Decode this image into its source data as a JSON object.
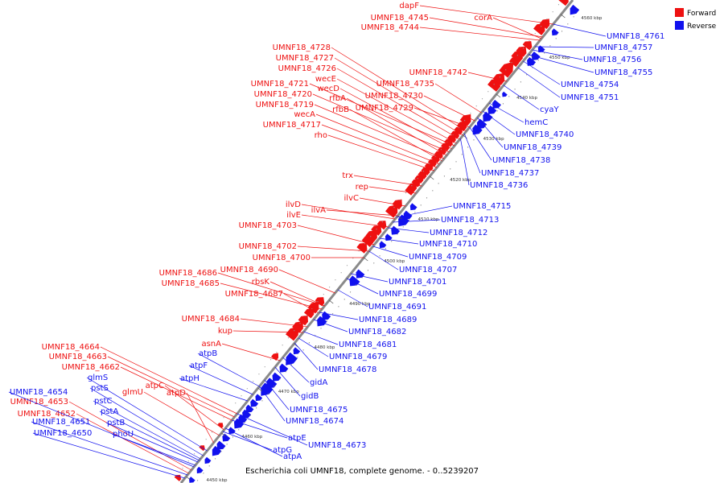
{
  "title": "Escherichia coli UMNF18, complete genome. - 0..5239207",
  "colors": {
    "forward": "#ee1111",
    "reverse": "#1111ee",
    "backbone": "#8a8a8a"
  },
  "legend": [
    {
      "label": "Forward",
      "color": "#ee1111"
    },
    {
      "label": "Reverse",
      "color": "#1111ee"
    }
  ],
  "scale_labels": [
    "4450 kbp",
    "4460 kbp",
    "4470 kbp",
    "4480 kbp",
    "4490 kbp",
    "4500 kbp",
    "4510 kbp",
    "4520 kbp",
    "4530 kbp",
    "4540 kbp",
    "4550 kbp",
    "4560 kbp"
  ],
  "forward_labels": [
    "dapF",
    "UMNF18_4745",
    "UMNF18_4744",
    "corA",
    "UMNF18_4742",
    "UMNF18_4728",
    "UMNF18_4727",
    "UMNF18_4726",
    "UMNF18_4735",
    "wecE",
    "UMNF18_4721",
    "wecD",
    "UMNF18_4730",
    "UMNF18_4720",
    "rfbA",
    "UMNF18_4719",
    "rfbB",
    "UMNF18_4729",
    "wecA",
    "UMNF18_4717",
    "rho",
    "trx",
    "rep",
    "ilvC",
    "ilvD",
    "ilvE",
    "ilvA",
    "UMNF18_4703",
    "UMNF18_4702",
    "UMNF18_4700",
    "UMNF18_4690",
    "UMNF18_4686",
    "rbsK",
    "UMNF18_4685",
    "UMNF18_4687",
    "UMNF18_4684",
    "kup",
    "asnA",
    "UMNF18_4664",
    "UMNF18_4663",
    "UMNF18_4662",
    "atpC",
    "glmU",
    "atpD",
    "UMNF18_4653",
    "UMNF18_4652"
  ],
  "reverse_labels": [
    "UMNF18_4761",
    "UMNF18_4757",
    "UMNF18_4756",
    "UMNF18_4755",
    "UMNF18_4754",
    "UMNF18_4751",
    "cyaY",
    "hemC",
    "UMNF18_4740",
    "UMNF18_4739",
    "UMNF18_4738",
    "UMNF18_4737",
    "UMNF18_4736",
    "UMNF18_4715",
    "UMNF18_4713",
    "UMNF18_4712",
    "UMNF18_4710",
    "UMNF18_4709",
    "UMNF18_4707",
    "UMNF18_4701",
    "UMNF18_4699",
    "UMNF18_4691",
    "UMNF18_4689",
    "UMNF18_4682",
    "UMNF18_4681",
    "atpB",
    "UMNF18_4679",
    "atpF",
    "UMNF18_4678",
    "atpH",
    "gidA",
    "glmS",
    "gidB",
    "pstS",
    "UMNF18_4654",
    "pstC",
    "UMNF18_4675",
    "pstA",
    "UMNF18_4674",
    "UMNF18_4651",
    "pstB",
    "phoU",
    "UMNF18_4650",
    "atpE",
    "UMNF18_4673",
    "atpG",
    "atpA"
  ]
}
